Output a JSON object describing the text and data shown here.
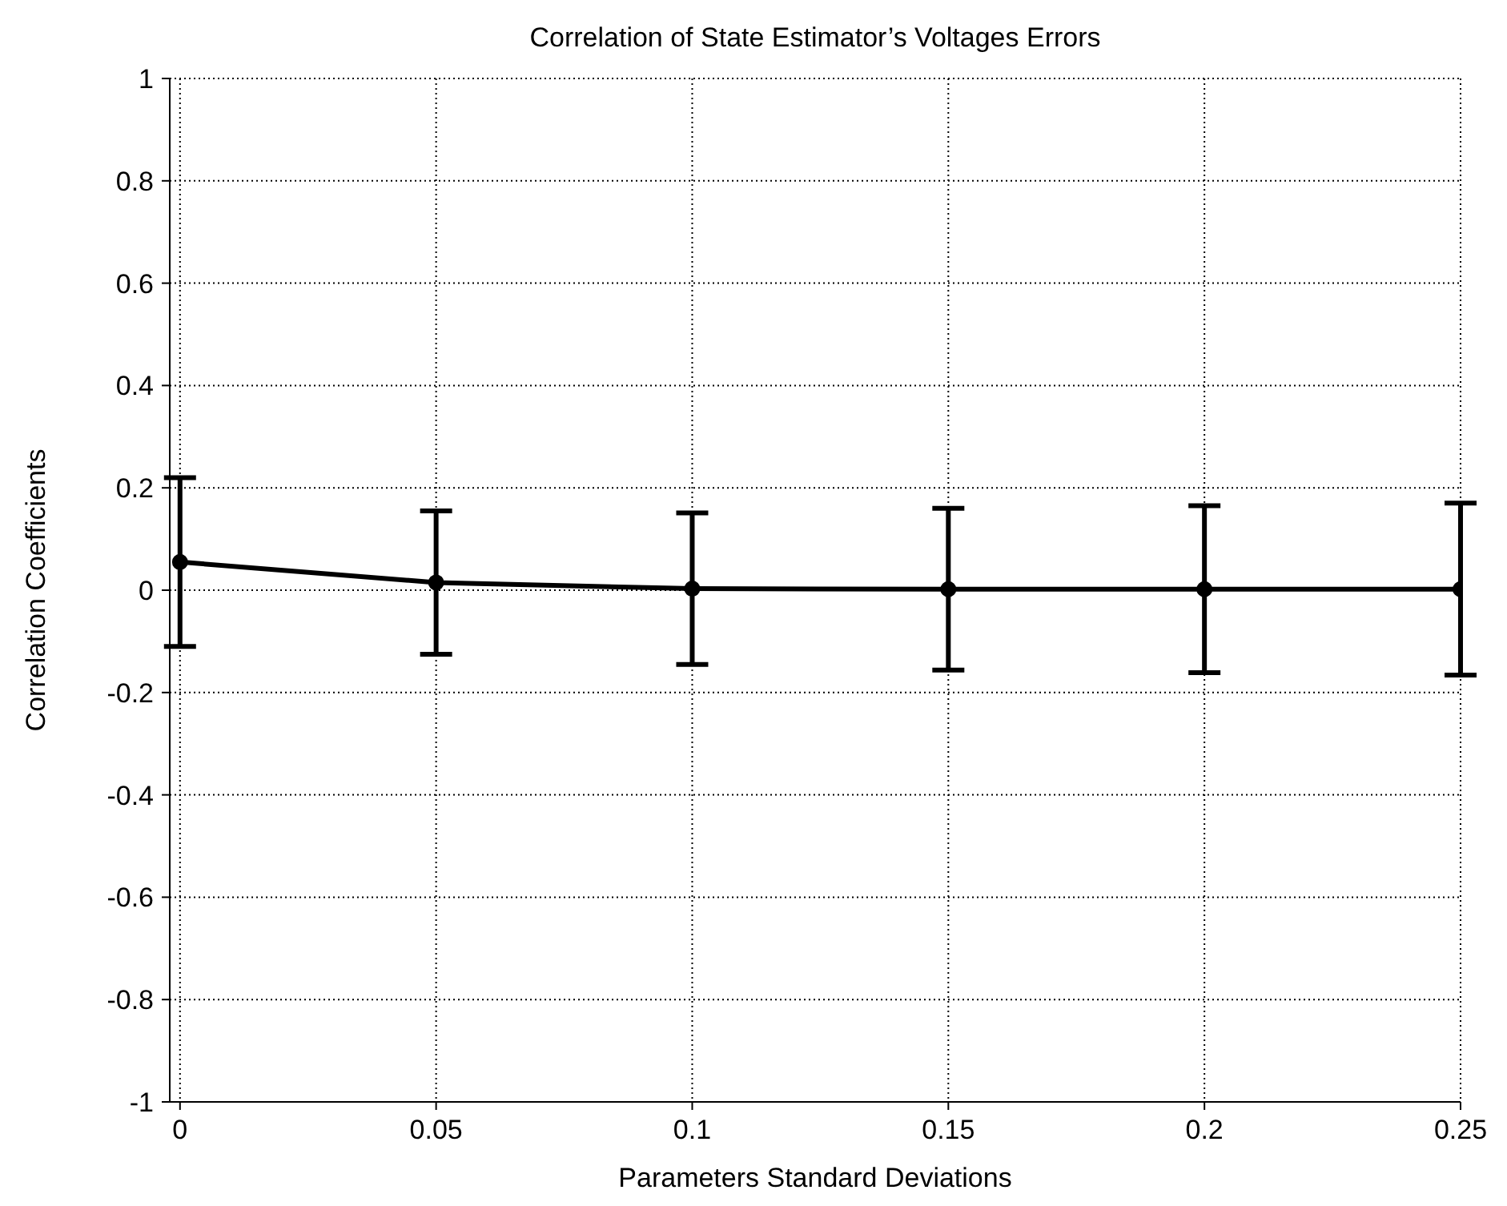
{
  "chart_data": {
    "type": "line",
    "title": "Correlation of State Estimator’s Voltages Errors",
    "xlabel": "Parameters Standard Deviations",
    "ylabel": "Correlation Coefficients",
    "x": [
      0,
      0.05,
      0.1,
      0.15,
      0.2,
      0.25
    ],
    "series": [
      {
        "color": "#000000",
        "values": [
          0.055,
          0.015,
          0.003,
          0.002,
          0.002,
          0.002
        ],
        "errors": [
          0.165,
          0.14,
          0.148,
          0.158,
          0.163,
          0.168
        ]
      }
    ],
    "xlim": [
      -0.002,
      0.25
    ],
    "xticks": [
      0,
      0.05,
      0.1,
      0.15,
      0.2,
      0.25
    ],
    "ylim": [
      -1,
      1
    ],
    "yticks": [
      -1,
      -0.8,
      -0.6,
      -0.4,
      -0.2,
      0,
      0.2,
      0.4,
      0.6,
      0.8,
      1
    ],
    "grid": true,
    "marker": "circle",
    "line_style": "solid",
    "legend": false
  }
}
